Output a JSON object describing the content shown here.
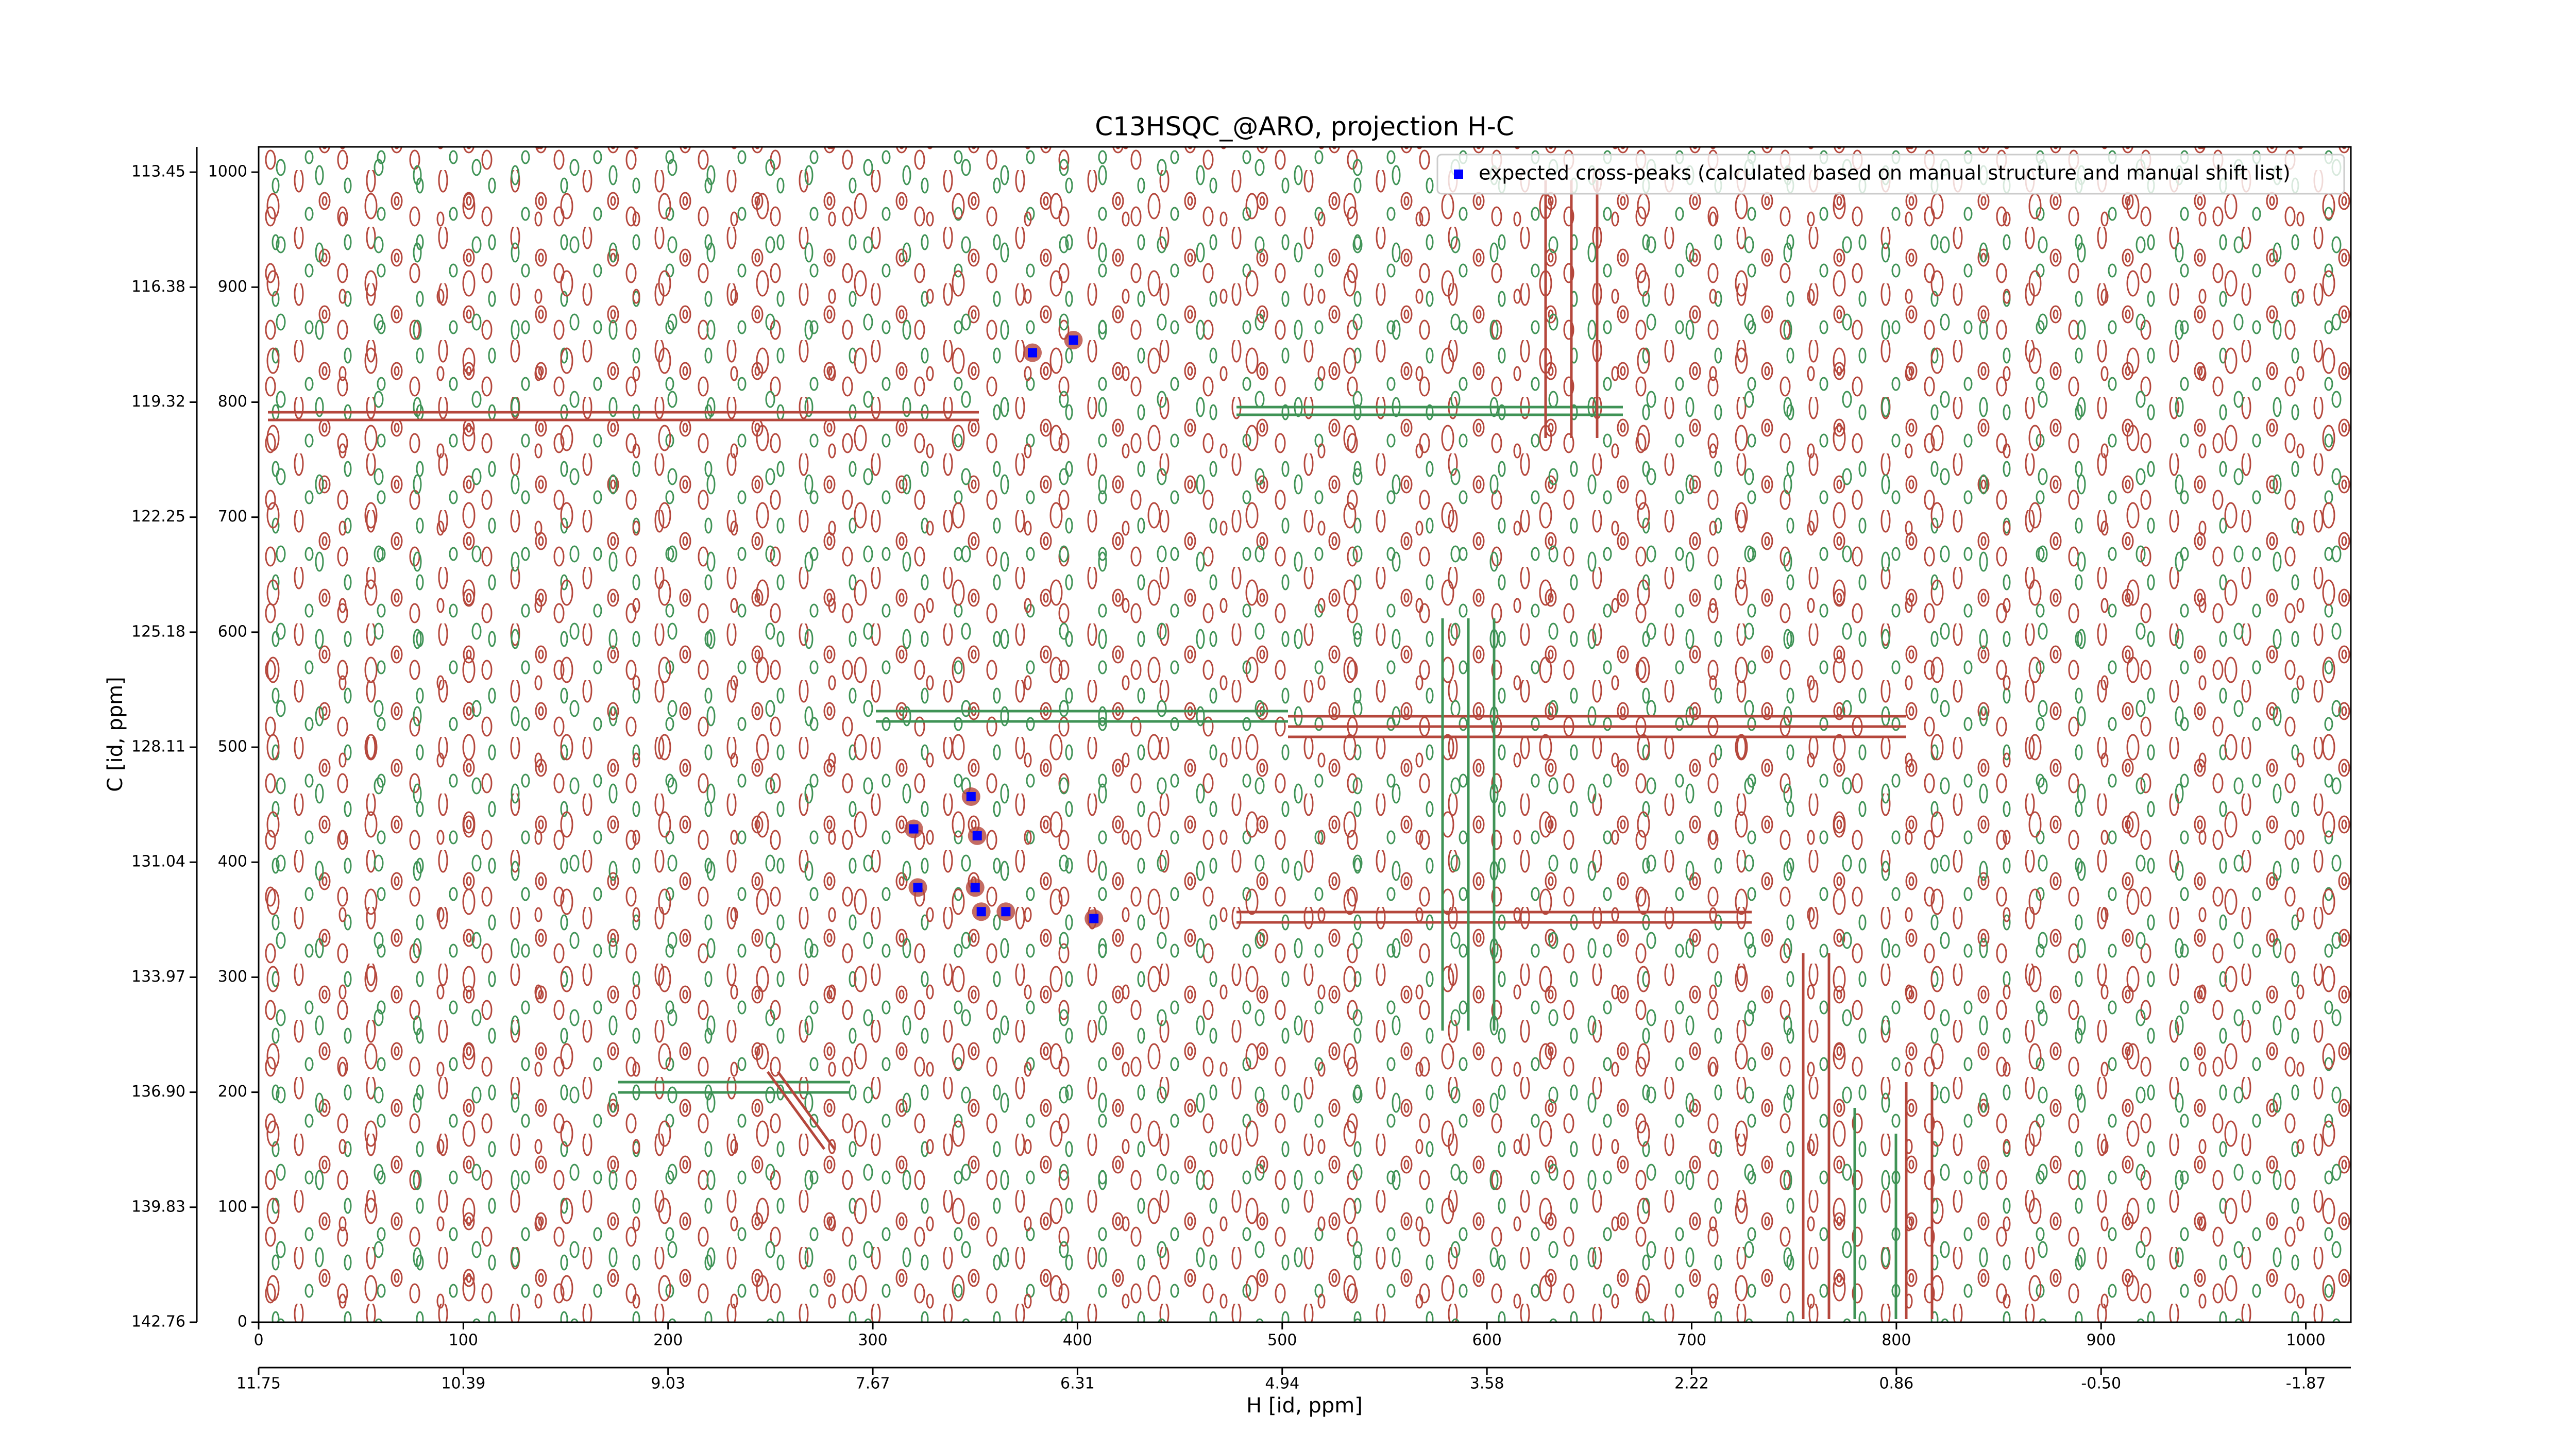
{
  "chart_data": {
    "type": "scatter",
    "title": "C13HSQC_@ARO, projection H-C",
    "xlabel": "H [id, ppm]",
    "ylabel": "C [id, ppm]",
    "xlim": [
      0,
      1022
    ],
    "ylim": [
      0,
      1022
    ],
    "xticks": [
      0,
      100,
      200,
      300,
      400,
      500,
      600,
      700,
      800,
      900,
      1000
    ],
    "yticks": [
      0,
      100,
      200,
      300,
      400,
      500,
      600,
      700,
      800,
      900,
      1000
    ],
    "x2ticks": [
      {
        "value": 0,
        "label": "11.75"
      },
      {
        "value": 100,
        "label": "10.39"
      },
      {
        "value": 200,
        "label": "9.03"
      },
      {
        "value": 300,
        "label": "7.67"
      },
      {
        "value": 400,
        "label": "6.31"
      },
      {
        "value": 500,
        "label": "4.94"
      },
      {
        "value": 600,
        "label": "3.58"
      },
      {
        "value": 700,
        "label": "2.22"
      },
      {
        "value": 800,
        "label": "0.86"
      },
      {
        "value": 900,
        "label": "-0.50"
      },
      {
        "value": 1000,
        "label": "-1.87"
      }
    ],
    "y2ticks": [
      {
        "value": 1000,
        "label": "113.45"
      },
      {
        "value": 900,
        "label": "116.38"
      },
      {
        "value": 800,
        "label": "119.32"
      },
      {
        "value": 700,
        "label": "122.25"
      },
      {
        "value": 600,
        "label": "125.18"
      },
      {
        "value": 500,
        "label": "128.11"
      },
      {
        "value": 400,
        "label": "131.04"
      },
      {
        "value": 300,
        "label": "133.97"
      },
      {
        "value": 200,
        "label": "136.90"
      },
      {
        "value": 100,
        "label": "139.83"
      },
      {
        "value": 0,
        "label": "142.76"
      }
    ],
    "legend": "upper right",
    "series": [
      {
        "name": "expected cross-peaks (calculated based on manual structure and manual shift list)",
        "color": "#0000ff",
        "x": [
          378,
          398,
          320,
          322,
          348,
          351,
          350,
          353,
          365,
          408
        ],
        "values": [
          843,
          854,
          429,
          378,
          457,
          423,
          378,
          357,
          357,
          351
        ]
      }
    ]
  }
}
